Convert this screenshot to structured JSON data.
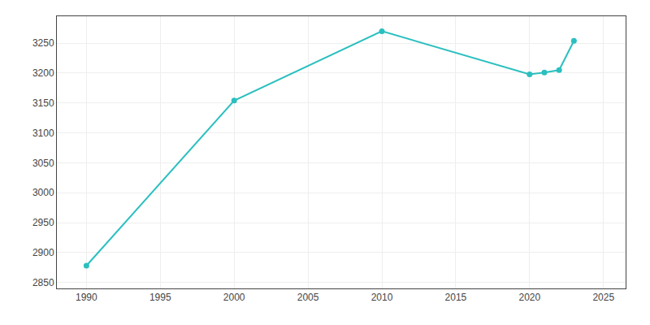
{
  "chart_data": {
    "type": "line",
    "x": [
      1990,
      2000,
      2010,
      2020,
      2021,
      2022,
      2023
    ],
    "values": [
      2878,
      3154,
      3270,
      3198,
      3201,
      3205,
      3254
    ],
    "color": "#2bbfbf",
    "marker": "circle",
    "xlim": [
      1988,
      2026.5
    ],
    "ylim": [
      2840,
      3295
    ],
    "xticks": [
      1990,
      1995,
      2000,
      2005,
      2010,
      2015,
      2020,
      2025
    ],
    "yticks": [
      2850,
      2900,
      2950,
      3000,
      3050,
      3100,
      3150,
      3200,
      3250
    ],
    "grid": true
  }
}
